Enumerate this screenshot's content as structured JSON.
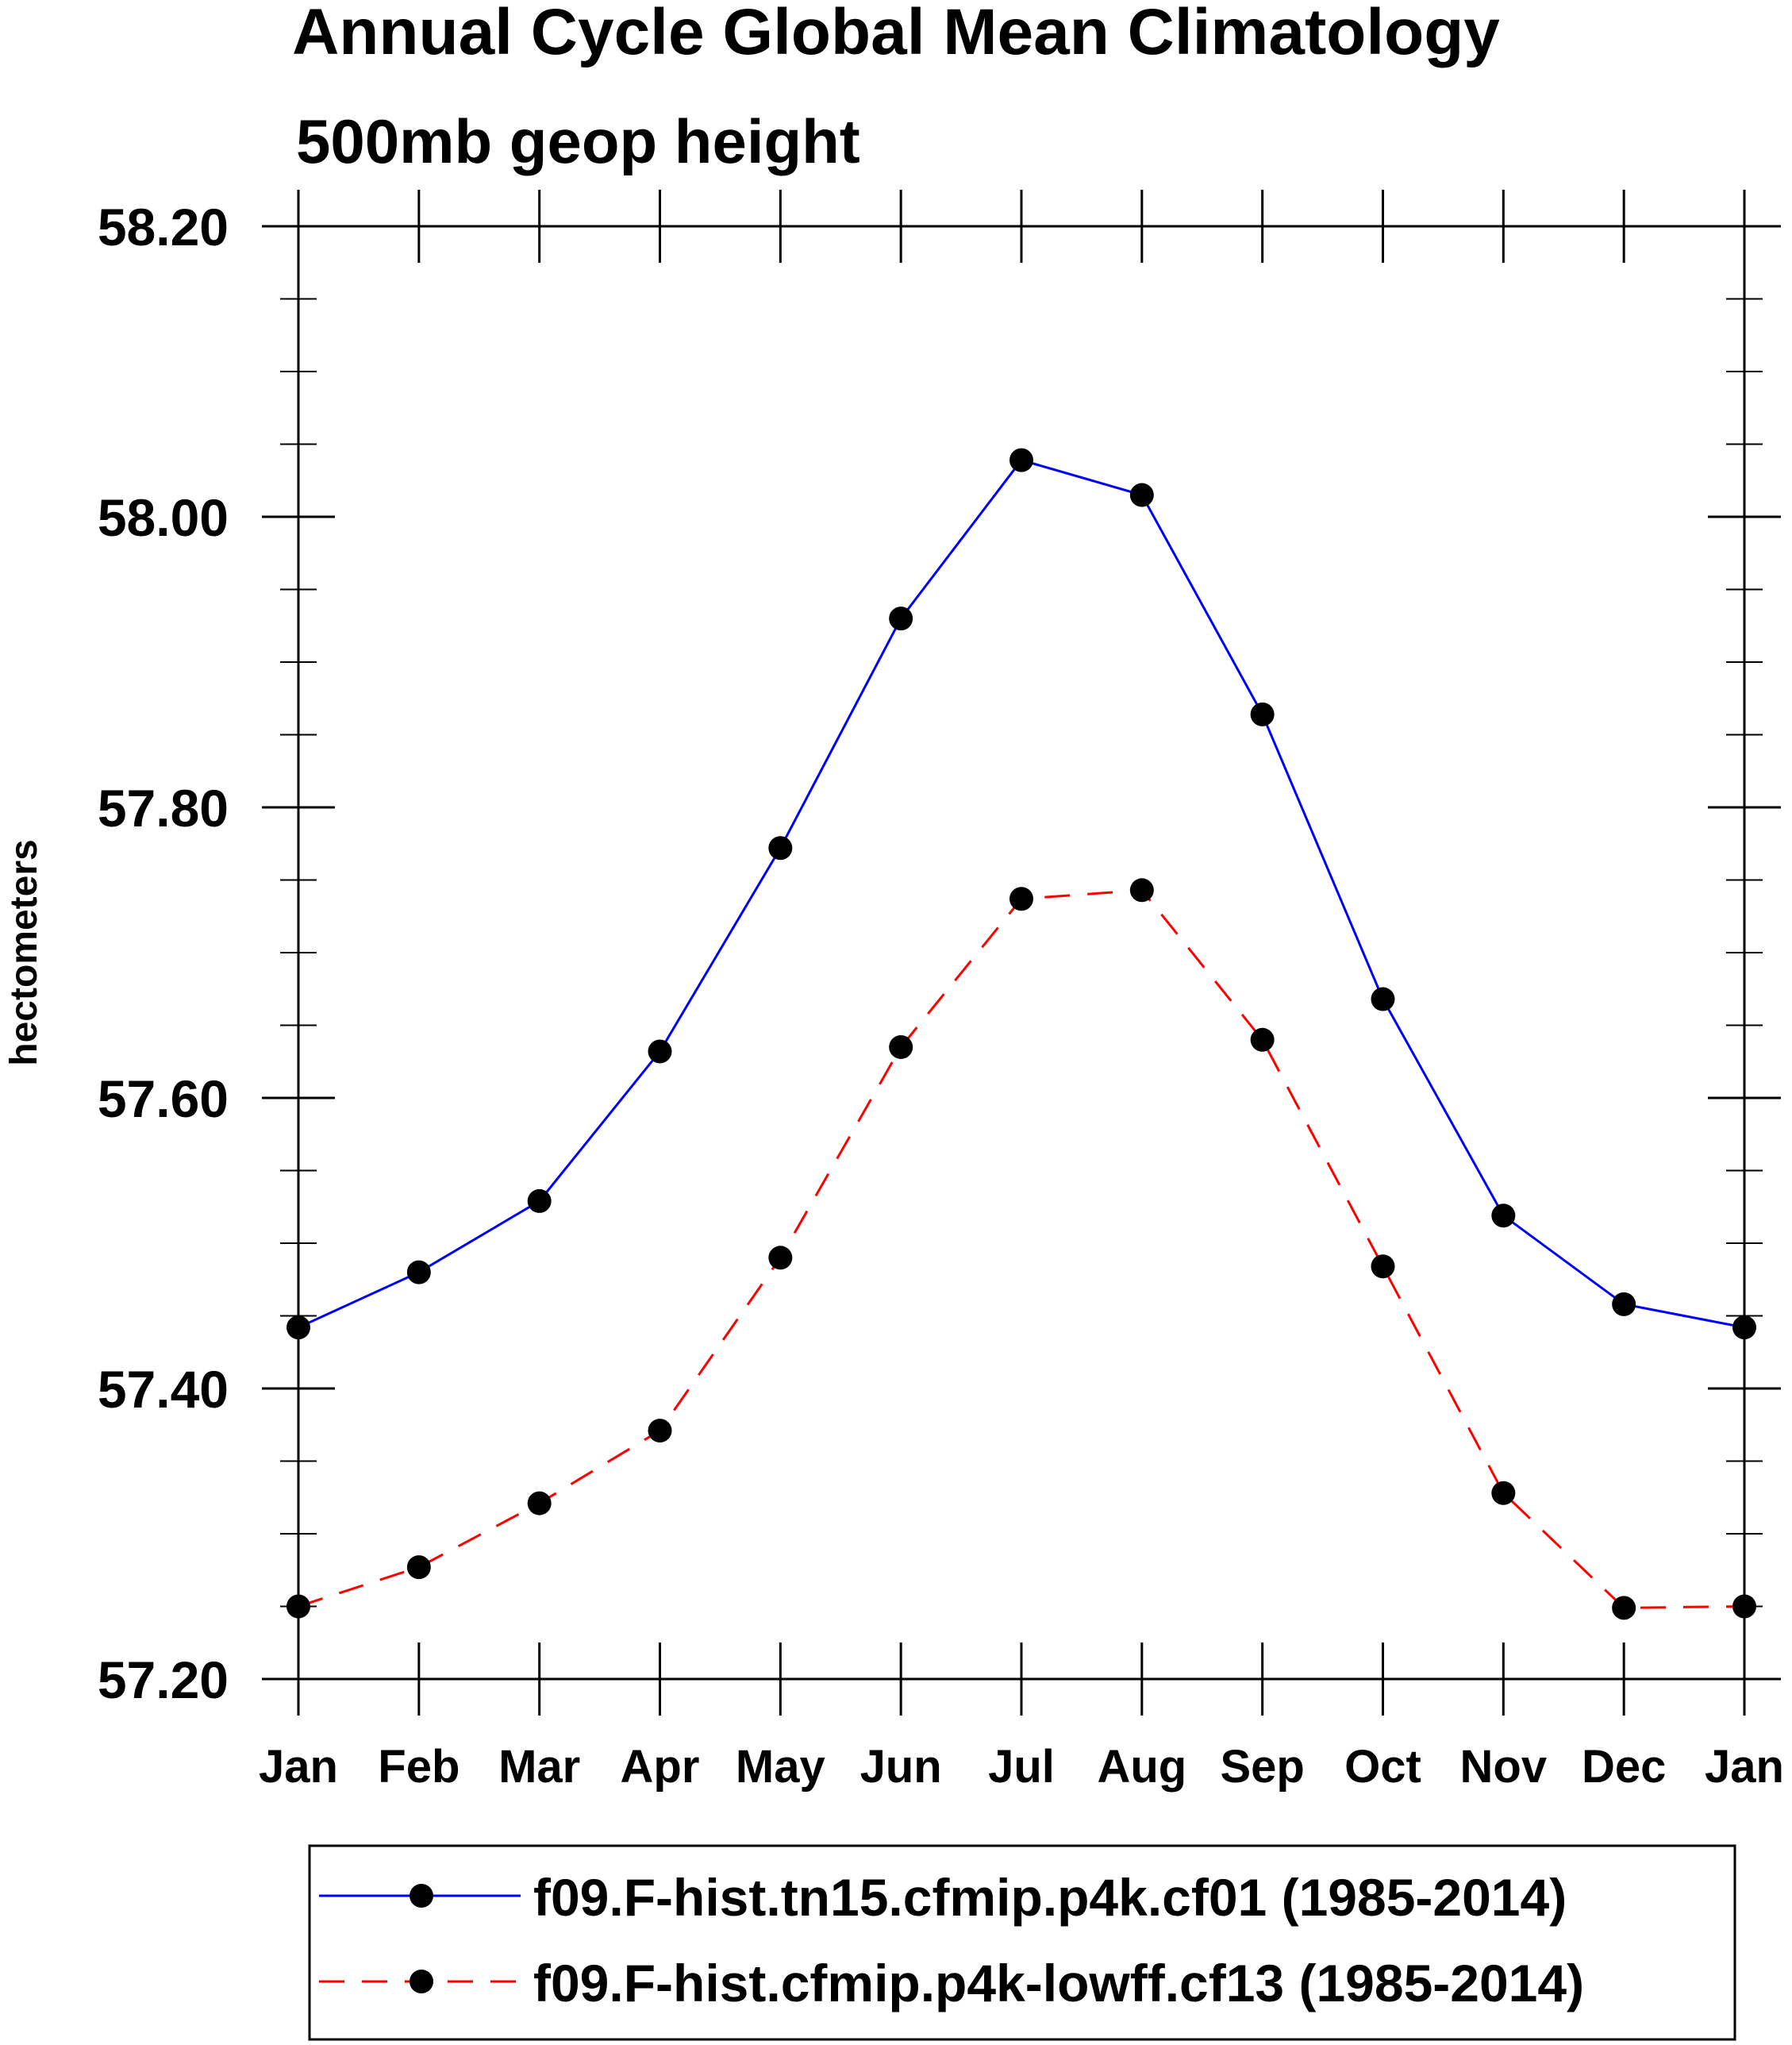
{
  "chart_data": {
    "type": "line",
    "title": "Annual Cycle Global Mean Climatology",
    "subtitle": "500mb geop height",
    "xlabel": "",
    "ylabel": "hectometers",
    "categories": [
      "Jan",
      "Feb",
      "Mar",
      "Apr",
      "May",
      "Jun",
      "Jul",
      "Aug",
      "Sep",
      "Oct",
      "Nov",
      "Dec",
      "Jan"
    ],
    "ylim": [
      57.2,
      58.2
    ],
    "yticks": [
      "57.20",
      "57.40",
      "57.60",
      "57.80",
      "58.00",
      "58.20"
    ],
    "ytick_values": [
      57.2,
      57.4,
      57.6,
      57.8,
      58.0,
      58.2
    ],
    "yminor_step": 0.05,
    "grid": false,
    "legend_position": "bottom",
    "series": [
      {
        "name": "f09.F-hist.tn15.cfmip.p4k.cf01 (1985-2014)",
        "color": "#0000ff",
        "dash": "solid",
        "marker": "filled-circle",
        "values": [
          57.442,
          57.48,
          57.529,
          57.632,
          57.772,
          57.93,
          58.039,
          58.015,
          57.864,
          57.668,
          57.519,
          57.458,
          57.442
        ]
      },
      {
        "name": "f09.F-hist.cfmip.p4k-lowff.cf13 (1985-2014)",
        "color": "#ff0000",
        "dash": "dashed",
        "marker": "filled-circle",
        "values": [
          57.25,
          57.277,
          57.321,
          57.371,
          57.49,
          57.635,
          57.737,
          57.743,
          57.64,
          57.484,
          57.328,
          57.249,
          57.25
        ]
      }
    ]
  }
}
